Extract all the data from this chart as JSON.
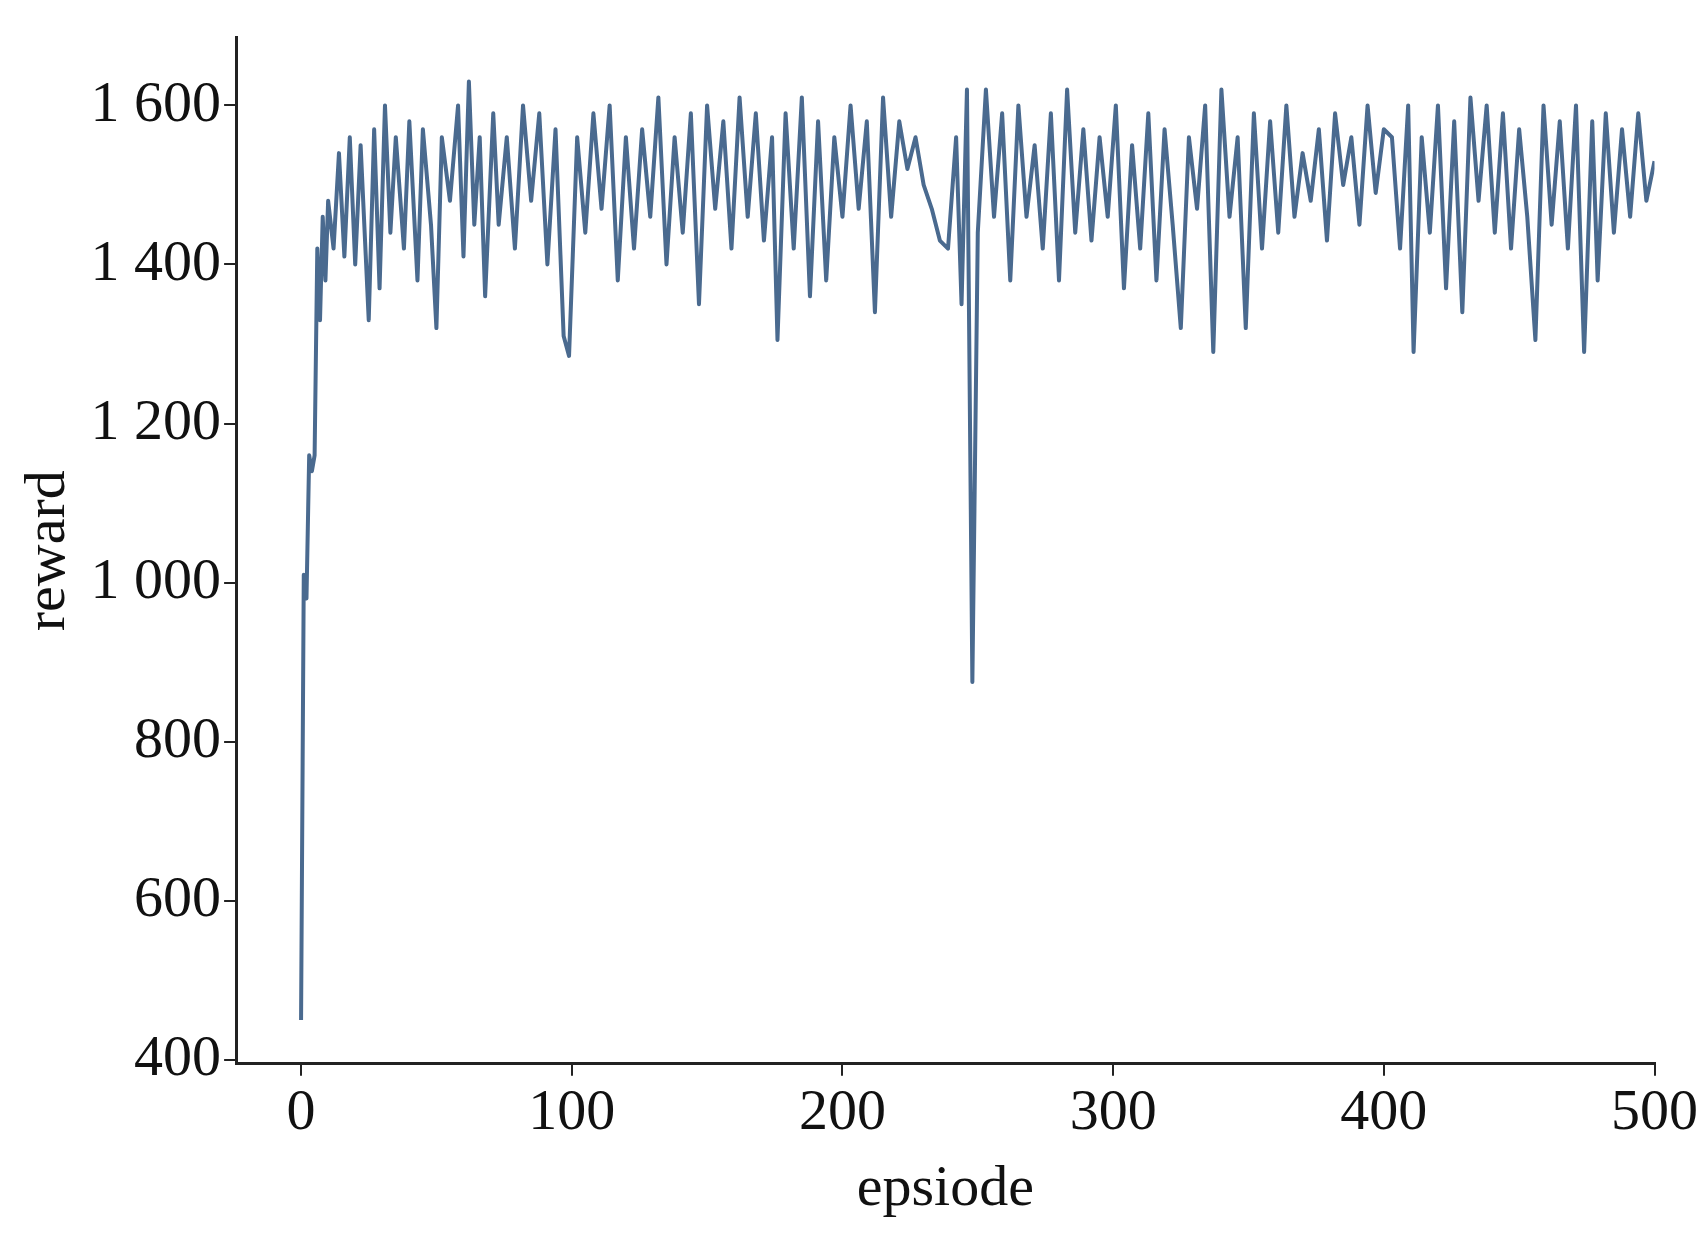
{
  "chart_data": {
    "type": "line",
    "xlabel": "epsiode",
    "ylabel": "reward",
    "xlim": [
      -24,
      500
    ],
    "xticks": [
      0,
      100,
      200,
      300,
      400,
      500
    ],
    "ylim": [
      395,
      1685
    ],
    "yticks": [
      {
        "value": 400,
        "label": "400"
      },
      {
        "value": 600,
        "label": "600"
      },
      {
        "value": 800,
        "label": "800"
      },
      {
        "value": 1000,
        "label": "1 000"
      },
      {
        "value": 1200,
        "label": "1 200"
      },
      {
        "value": 1400,
        "label": "1 400"
      },
      {
        "value": 1600,
        "label": "1 600"
      }
    ],
    "grid": false,
    "legend": false,
    "marker": "none",
    "line_style": "solid",
    "series": [
      {
        "color": "#4a6a8f",
        "x": [
          0,
          1,
          2,
          3,
          4,
          5,
          6,
          7,
          8,
          9,
          10,
          12,
          14,
          16,
          18,
          20,
          22,
          25,
          27,
          29,
          31,
          33,
          35,
          38,
          40,
          43,
          45,
          48,
          50,
          52,
          55,
          58,
          60,
          62,
          64,
          66,
          68,
          71,
          73,
          76,
          79,
          82,
          85,
          88,
          91,
          94,
          97,
          99,
          102,
          105,
          108,
          111,
          114,
          117,
          120,
          123,
          126,
          129,
          132,
          135,
          138,
          141,
          144,
          147,
          150,
          153,
          156,
          159,
          162,
          165,
          168,
          171,
          174,
          176,
          179,
          182,
          185,
          188,
          191,
          194,
          197,
          200,
          203,
          206,
          209,
          212,
          215,
          218,
          221,
          224,
          227,
          230,
          233,
          236,
          239,
          242,
          244,
          246,
          248,
          250,
          253,
          256,
          259,
          262,
          265,
          268,
          271,
          274,
          277,
          280,
          283,
          286,
          289,
          292,
          295,
          298,
          301,
          304,
          307,
          310,
          313,
          316,
          319,
          322,
          325,
          328,
          331,
          334,
          337,
          340,
          343,
          346,
          349,
          352,
          355,
          358,
          361,
          364,
          367,
          370,
          373,
          376,
          379,
          382,
          385,
          388,
          391,
          394,
          397,
          400,
          403,
          406,
          409,
          411,
          414,
          417,
          420,
          423,
          426,
          429,
          432,
          435,
          438,
          441,
          444,
          447,
          450,
          453,
          456,
          459,
          462,
          465,
          468,
          471,
          474,
          477,
          479,
          482,
          485,
          488,
          491,
          494,
          497,
          500
        ],
        "values": [
          450,
          1010,
          980,
          1160,
          1140,
          1160,
          1420,
          1330,
          1460,
          1380,
          1480,
          1420,
          1540,
          1410,
          1560,
          1400,
          1550,
          1330,
          1570,
          1370,
          1600,
          1440,
          1560,
          1420,
          1580,
          1380,
          1570,
          1450,
          1320,
          1560,
          1480,
          1600,
          1410,
          1630,
          1450,
          1560,
          1360,
          1590,
          1450,
          1560,
          1420,
          1600,
          1480,
          1590,
          1400,
          1570,
          1310,
          1285,
          1560,
          1440,
          1590,
          1470,
          1600,
          1380,
          1560,
          1420,
          1570,
          1460,
          1610,
          1400,
          1560,
          1440,
          1590,
          1350,
          1600,
          1470,
          1580,
          1420,
          1610,
          1460,
          1590,
          1430,
          1560,
          1305,
          1590,
          1420,
          1610,
          1360,
          1580,
          1380,
          1560,
          1460,
          1600,
          1470,
          1580,
          1340,
          1610,
          1460,
          1580,
          1520,
          1560,
          1500,
          1470,
          1430,
          1420,
          1560,
          1350,
          1620,
          875,
          1440,
          1620,
          1460,
          1590,
          1380,
          1600,
          1460,
          1550,
          1420,
          1590,
          1380,
          1620,
          1440,
          1570,
          1430,
          1560,
          1460,
          1600,
          1370,
          1550,
          1420,
          1590,
          1380,
          1570,
          1450,
          1320,
          1560,
          1470,
          1600,
          1290,
          1620,
          1460,
          1560,
          1320,
          1590,
          1420,
          1580,
          1440,
          1600,
          1460,
          1540,
          1480,
          1570,
          1430,
          1590,
          1500,
          1560,
          1450,
          1600,
          1490,
          1570,
          1560,
          1420,
          1600,
          1290,
          1560,
          1440,
          1600,
          1370,
          1580,
          1340,
          1610,
          1480,
          1600,
          1440,
          1590,
          1420,
          1570,
          1460,
          1305,
          1600,
          1450,
          1580,
          1420,
          1600,
          1290,
          1580,
          1380,
          1590,
          1440,
          1570,
          1460,
          1590,
          1480,
          1530
        ]
      }
    ]
  }
}
